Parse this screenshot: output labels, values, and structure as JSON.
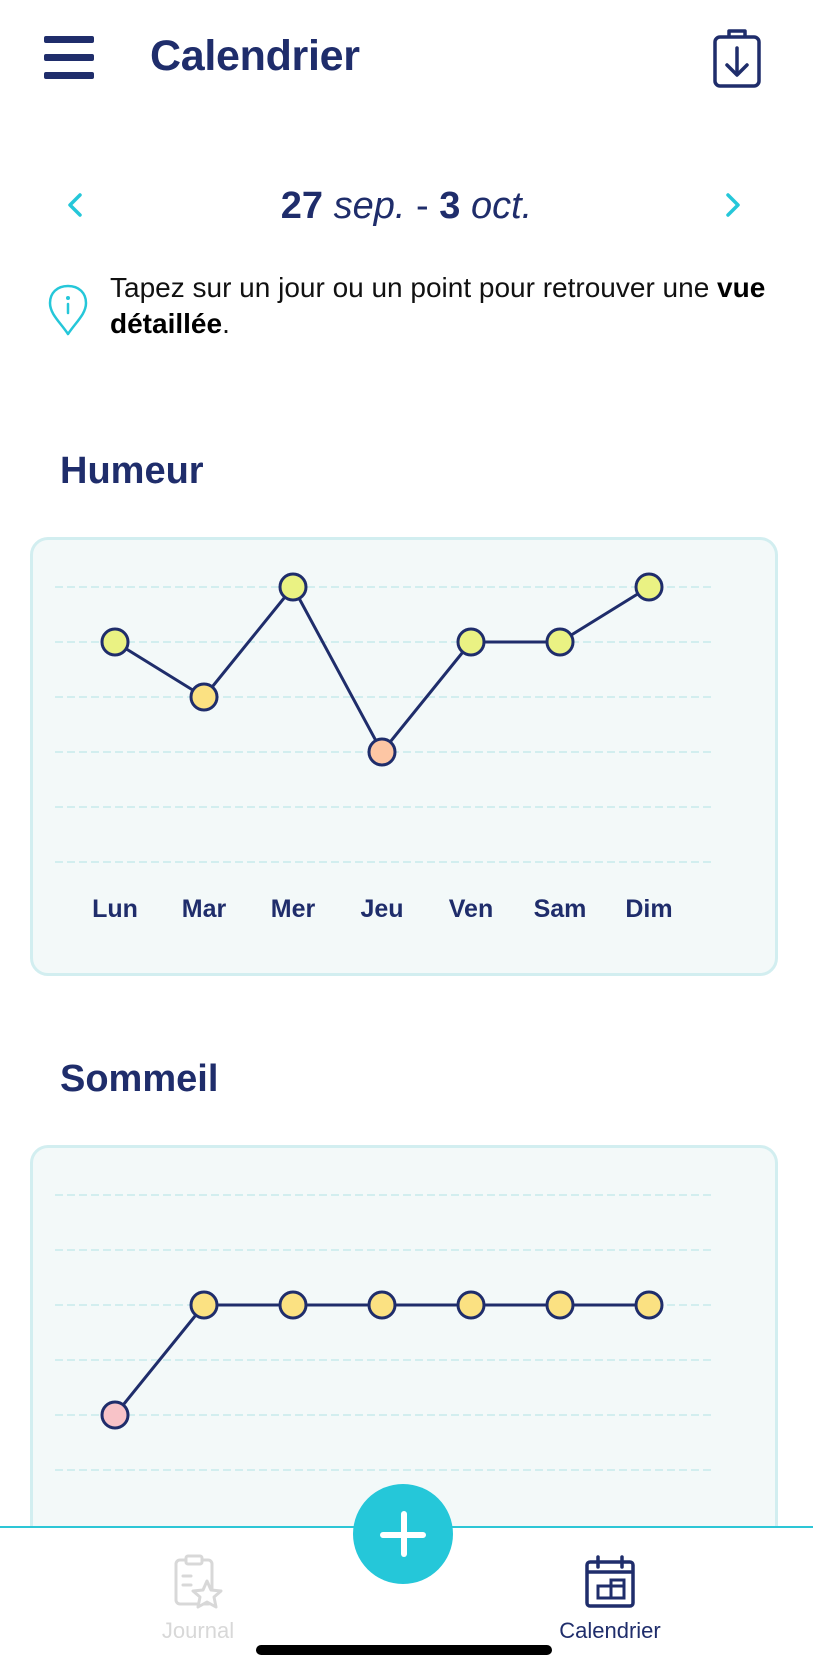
{
  "header": {
    "title": "Calendrier",
    "menu_icon": "hamburger-menu-icon",
    "export_icon": "clipboard-download-icon"
  },
  "week_nav": {
    "start_day": "27",
    "start_month": "sep.",
    "separator": "-",
    "end_day": "3",
    "end_month": "oct.",
    "prev_icon": "chevron-left-icon",
    "next_icon": "chevron-right-icon"
  },
  "info": {
    "icon": "info-pin-icon",
    "text": "Tapez sur un jour ou un point pour retrouver une ",
    "bold_text": "vue détaillée",
    "suffix": "."
  },
  "colors": {
    "primary": "#1f2d6b",
    "accent": "#25c7d9",
    "card_bg": "#f3f9f9",
    "card_border": "#d2eef0",
    "grid_line": "#c8eaec",
    "level_good": "#eaf283",
    "level_ok": "#fbe182",
    "level_low": "#fdc6a4",
    "level_bad": "#f8c3c8"
  },
  "chart_data": [
    {
      "type": "line",
      "title": "Humeur",
      "categories": [
        "Lun",
        "Mar",
        "Mer",
        "Jeu",
        "Ven",
        "Sam",
        "Dim"
      ],
      "values": [
        4,
        3,
        5,
        2,
        4,
        4,
        5
      ],
      "ylim": [
        0,
        5
      ],
      "grid": true
    },
    {
      "type": "line",
      "title": "Sommeil",
      "categories": [
        "Lun",
        "Mar",
        "Mer",
        "Jeu",
        "Ven",
        "Sam",
        "Dim"
      ],
      "values": [
        1,
        3,
        3,
        3,
        3,
        3,
        3
      ],
      "ylim": [
        0,
        5
      ],
      "grid": true
    }
  ],
  "tabbar": {
    "journal_label": "Journal",
    "journal_icon": "journal-clipboard-star-icon",
    "calendar_label": "Calendrier",
    "calendar_icon": "calendar-icon",
    "add_icon": "plus-icon"
  }
}
